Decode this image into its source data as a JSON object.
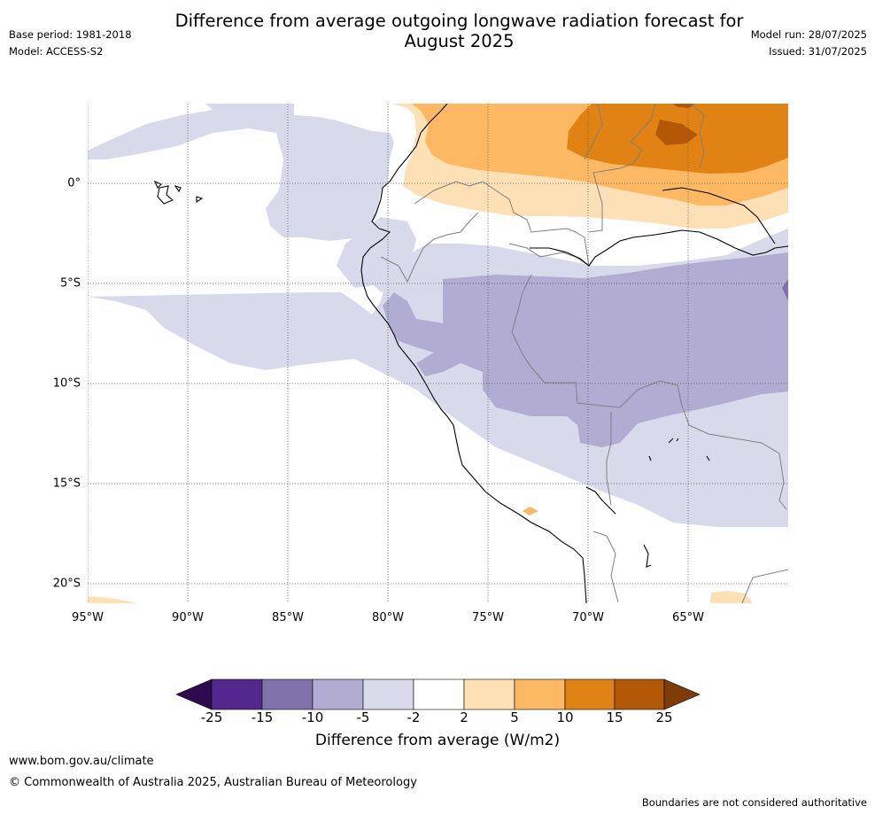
{
  "title": "Difference from average outgoing longwave radiation forecast for August 2025",
  "title_line1": "Difference from average outgoing longwave radiation forecast for",
  "title_line2": "August 2025",
  "base_period": "Base period: 1981-2018",
  "model": "Model: ACCESS-S2",
  "model_run": "Model run: 28/07/2025",
  "issued": "Issued: 31/07/2025",
  "lat_labels": [
    "0°",
    "5°S",
    "10°S",
    "15°S",
    "20°S"
  ],
  "lon_labels": [
    "95°W",
    "90°W",
    "85°W",
    "80°W",
    "75°W",
    "70°W",
    "65°W"
  ],
  "colorbar": {
    "title": "Difference from average (W/m2)",
    "ticks": [
      "-25",
      "-15",
      "-10",
      "-5",
      "-2",
      "2",
      "5",
      "10",
      "15",
      "25"
    ],
    "colors": [
      "#2d0b4e",
      "#54278f",
      "#8073ac",
      "#b2abd2",
      "#d8daeb",
      "#ffffff",
      "#fee0b6",
      "#fdb863",
      "#e08214",
      "#b35806",
      "#7f3b08"
    ]
  },
  "footer": {
    "url": "www.bom.gov.au/climate",
    "copyright": "© Commonwealth of Australia 2025, Australian Bureau of Meteorology",
    "disclaimer": "Boundaries are not considered authoritative"
  }
}
